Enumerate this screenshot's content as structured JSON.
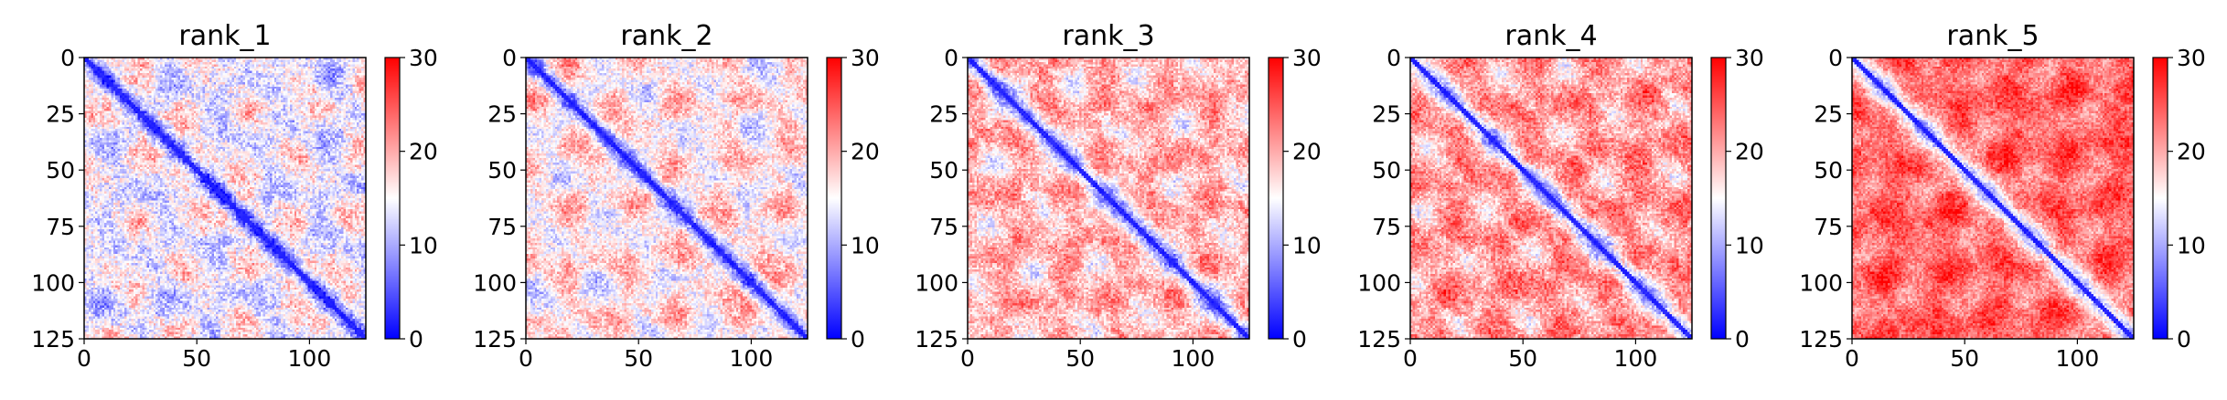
{
  "chart_data": [
    {
      "type": "heatmap",
      "title": "rank_1",
      "size": 126,
      "xlim": [
        0,
        125
      ],
      "ylim": [
        125,
        0
      ],
      "x_ticks": [
        0,
        50,
        100
      ],
      "y_ticks": [
        0,
        25,
        50,
        75,
        100,
        125
      ],
      "colorbar": {
        "min": 0,
        "max": 30,
        "ticks": [
          0,
          10,
          20,
          30
        ],
        "colormap": "bwr"
      },
      "pattern": {
        "baseline": 17,
        "diagonal_width": 4.0,
        "band_period": 33,
        "band_amplitude": 6,
        "band_spread": 6,
        "texture": 4
      }
    },
    {
      "type": "heatmap",
      "title": "rank_2",
      "size": 126,
      "xlim": [
        0,
        125
      ],
      "ylim": [
        125,
        0
      ],
      "x_ticks": [
        0,
        50,
        100
      ],
      "y_ticks": [
        0,
        25,
        50,
        75,
        100,
        125
      ],
      "colorbar": {
        "min": 0,
        "max": 30,
        "ticks": [
          0,
          10,
          20,
          30
        ],
        "colormap": "bwr"
      },
      "pattern": {
        "baseline": 19,
        "diagonal_width": 4.5,
        "band_period": 33,
        "band_amplitude": 6,
        "band_spread": 6,
        "texture": 3.5
      }
    },
    {
      "type": "heatmap",
      "title": "rank_3",
      "size": 126,
      "xlim": [
        0,
        125
      ],
      "ylim": [
        125,
        0
      ],
      "x_ticks": [
        0,
        50,
        100
      ],
      "y_ticks": [
        0,
        25,
        50,
        75,
        100,
        125
      ],
      "colorbar": {
        "min": 0,
        "max": 30,
        "ticks": [
          0,
          10,
          20,
          30
        ],
        "colormap": "bwr"
      },
      "pattern": {
        "baseline": 21,
        "diagonal_width": 5,
        "band_period": 33,
        "band_amplitude": 5,
        "band_spread": 5,
        "texture": 3.5
      }
    },
    {
      "type": "heatmap",
      "title": "rank_4",
      "size": 126,
      "xlim": [
        0,
        125
      ],
      "ylim": [
        125,
        0
      ],
      "x_ticks": [
        0,
        50,
        100
      ],
      "y_ticks": [
        0,
        25,
        50,
        75,
        100,
        125
      ],
      "colorbar": {
        "min": 0,
        "max": 30,
        "ticks": [
          0,
          10,
          20,
          30
        ],
        "colormap": "bwr"
      },
      "pattern": {
        "baseline": 23,
        "diagonal_width": 5.5,
        "band_period": 33,
        "band_amplitude": 6,
        "band_spread": 5,
        "texture": 3.5
      }
    },
    {
      "type": "heatmap",
      "title": "rank_5",
      "size": 126,
      "xlim": [
        0,
        125
      ],
      "ylim": [
        125,
        0
      ],
      "x_ticks": [
        0,
        50,
        100
      ],
      "y_ticks": [
        0,
        25,
        50,
        75,
        100,
        125
      ],
      "colorbar": {
        "min": 0,
        "max": 30,
        "ticks": [
          0,
          10,
          20,
          30
        ],
        "colormap": "bwr"
      },
      "pattern": {
        "baseline": 25,
        "diagonal_width": 6,
        "band_period": 33,
        "band_amplitude": 3,
        "band_spread": 5,
        "texture": 3
      }
    }
  ],
  "colors": {
    "low": "#0000ff",
    "mid": "#ffffff",
    "high": "#ff0000"
  }
}
